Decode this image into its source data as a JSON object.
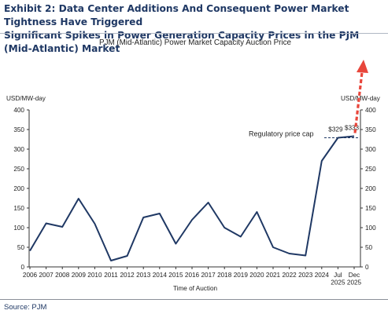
{
  "header": {
    "exhibit_line1": "Exhibit 2: Data Center Additions And Consequent Power Market Tightness Have Triggered",
    "exhibit_line2": "Significant Spikes in Power Generation Capacity Prices in the PJM (Mid-Atlantic) Market"
  },
  "footer": {
    "source": "Source: PJM"
  },
  "chart_data": {
    "type": "line",
    "title": "PJM (Mid-Atlantic) Power Market Capacity Auction Price",
    "xlabel": "Time of Auction",
    "ylabel_left": "USD/MW-day",
    "ylabel_right": "USD/MW-day",
    "ylim": [
      0,
      400
    ],
    "yticks": [
      0,
      50,
      100,
      150,
      200,
      250,
      300,
      350,
      400
    ],
    "grid": false,
    "categories": [
      "2006",
      "2007",
      "2008",
      "2009",
      "2010",
      "2011",
      "2012",
      "2013",
      "2014",
      "2015",
      "2016",
      "2017",
      "2018",
      "2019",
      "2020",
      "2021",
      "2022",
      "2023",
      "2024",
      "Jul 2025",
      "Dec 2025"
    ],
    "xtick_labels": [
      [
        "2006"
      ],
      [
        "2007"
      ],
      [
        "2008"
      ],
      [
        "2009"
      ],
      [
        "2010"
      ],
      [
        "2011"
      ],
      [
        "2012"
      ],
      [
        "2013"
      ],
      [
        "2014"
      ],
      [
        "2015"
      ],
      [
        "2016"
      ],
      [
        "2017"
      ],
      [
        "2018"
      ],
      [
        "2019"
      ],
      [
        "2020"
      ],
      [
        "2021"
      ],
      [
        "2022"
      ],
      [
        "2023"
      ],
      [
        "2024"
      ],
      [
        "Jul",
        "2025"
      ],
      [
        "Dec",
        "2025"
      ]
    ],
    "series": [
      {
        "values": [
          41,
          111,
          102,
          174,
          110,
          16,
          28,
          126,
          136,
          59,
          120,
          164,
          100,
          77,
          140,
          50,
          34,
          29,
          270,
          329,
          333
        ]
      }
    ],
    "data_labels": [
      {
        "category": "Jul 2025",
        "text": "$329"
      },
      {
        "category": "Dec 2025",
        "text": "$333"
      }
    ],
    "annotations": {
      "regulatory_cap_label": "Regulatory price cap",
      "regulatory_cap_value": 329
    },
    "colors": {
      "line": "#1f3864",
      "cap_line": "#1f3864",
      "arrow": "#e8463b"
    }
  }
}
